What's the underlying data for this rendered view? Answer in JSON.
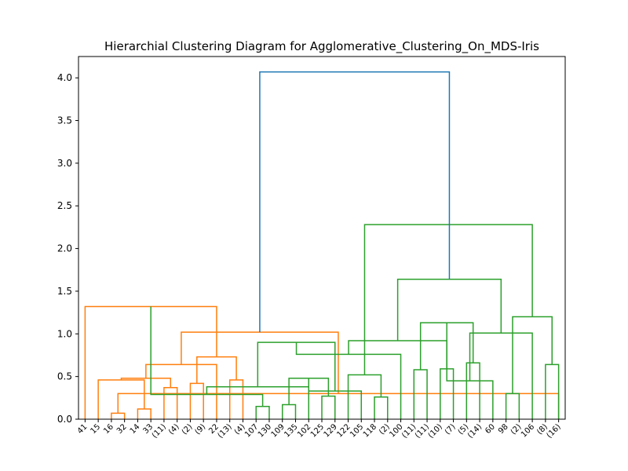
{
  "chart_data": {
    "type": "dendrogram",
    "title": "Hierarchial Clustering Diagram for Agglomerative_Clustering_On_MDS-Iris",
    "xlabel": "",
    "ylabel": "",
    "ylim": [
      0,
      4.25
    ],
    "grid": false,
    "yticks": [
      0.0,
      0.5,
      1.0,
      1.5,
      2.0,
      2.5,
      3.0,
      3.5,
      4.0
    ],
    "ytick_labels": [
      "0.0",
      "0.5",
      "1.0",
      "1.5",
      "2.0",
      "2.5",
      "3.0",
      "3.5",
      "4.0"
    ],
    "leaf_labels": [
      "41",
      "15",
      "16",
      "32",
      "14",
      "33",
      "(11)",
      "(4)",
      "(2)",
      "(9)",
      "22",
      "(13)",
      "(4)",
      "107",
      "130",
      "109",
      "135",
      "102",
      "125",
      "129",
      "122",
      "105",
      "118",
      "(2)",
      "100",
      "(11)",
      "(11)",
      "(10)",
      "(7)",
      "(5)",
      "(14)",
      "60",
      "98",
      "(2)",
      "106",
      "(8)",
      "(16)"
    ],
    "colors": {
      "cluster_1": "#ff7f0e",
      "cluster_2": "#2ca02c",
      "root": "#1f77b4"
    },
    "links": [
      {
        "left": 2,
        "right": 3,
        "height": 0.07,
        "color": "cluster_1"
      },
      {
        "left": 4,
        "right": 5,
        "height": 0.12,
        "color": "cluster_1"
      },
      {
        "left": 36,
        "right": 37,
        "height": 0.3,
        "color": "cluster_1"
      },
      {
        "left": 1,
        "right": 38,
        "height": 0.46,
        "color": "cluster_1"
      },
      {
        "left": 6,
        "right": 7,
        "height": 0.37,
        "color": "cluster_1"
      },
      {
        "left": 8,
        "right": 9,
        "height": 0.42,
        "color": "cluster_1"
      },
      {
        "left": 40,
        "right": 41,
        "height": 0.48,
        "color": "cluster_1"
      },
      {
        "left": 11,
        "right": 12,
        "height": 0.46,
        "color": "cluster_1"
      },
      {
        "left": 10,
        "right": 43,
        "height": 0.64,
        "color": "cluster_1"
      },
      {
        "left": 42,
        "right": 44,
        "height": 0.73,
        "color": "cluster_1"
      },
      {
        "left": 39,
        "right": 45,
        "height": 1.02,
        "color": "cluster_1"
      },
      {
        "left": 0,
        "right": 46,
        "height": 1.32,
        "color": "cluster_1"
      },
      {
        "left": 13,
        "right": 14,
        "height": 0.15,
        "color": "cluster_2"
      },
      {
        "left": 15,
        "right": 16,
        "height": 0.17,
        "color": "cluster_2"
      },
      {
        "left": 48,
        "right": 49,
        "height": 0.29,
        "color": "cluster_2"
      },
      {
        "left": 18,
        "right": 19,
        "height": 0.27,
        "color": "cluster_2"
      },
      {
        "left": 17,
        "right": 51,
        "height": 0.38,
        "color": "cluster_2"
      },
      {
        "left": 50,
        "right": 52,
        "height": 0.48,
        "color": "cluster_2"
      },
      {
        "left": 22,
        "right": 23,
        "height": 0.26,
        "color": "cluster_2"
      },
      {
        "left": 21,
        "right": 54,
        "height": 0.33,
        "color": "cluster_2"
      },
      {
        "left": 20,
        "right": 55,
        "height": 0.52,
        "color": "cluster_2"
      },
      {
        "left": 53,
        "right": 56,
        "height": 0.9,
        "color": "cluster_2"
      },
      {
        "left": 25,
        "right": 26,
        "height": 0.58,
        "color": "cluster_2"
      },
      {
        "left": 24,
        "right": 58,
        "height": 0.76,
        "color": "cluster_2"
      },
      {
        "left": 27,
        "right": 28,
        "height": 0.59,
        "color": "cluster_2"
      },
      {
        "left": 29,
        "right": 30,
        "height": 0.66,
        "color": "cluster_2"
      },
      {
        "left": 60,
        "right": 61,
        "height": 0.92,
        "color": "cluster_2"
      },
      {
        "left": 59,
        "right": 62,
        "height": 1.13,
        "color": "cluster_2"
      },
      {
        "left": 32,
        "right": 33,
        "height": 0.3,
        "color": "cluster_2"
      },
      {
        "left": 31,
        "right": 64,
        "height": 0.45,
        "color": "cluster_2"
      },
      {
        "left": 35,
        "right": 36,
        "height": 0.64,
        "color": "cluster_2"
      },
      {
        "left": 34,
        "right": 66,
        "height": 1.01,
        "color": "cluster_2"
      },
      {
        "left": 65,
        "right": 67,
        "height": 1.2,
        "color": "cluster_2"
      },
      {
        "left": 63,
        "right": 68,
        "height": 1.64,
        "color": "cluster_2"
      },
      {
        "left": 57,
        "right": 69,
        "height": 2.28,
        "color": "cluster_2"
      },
      {
        "left": 47,
        "right": 70,
        "height": 4.07,
        "color": "root"
      }
    ]
  }
}
